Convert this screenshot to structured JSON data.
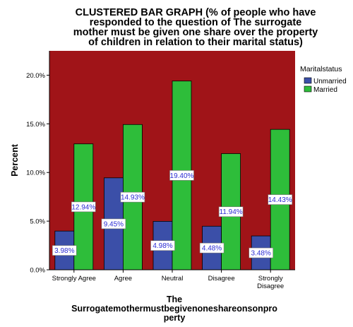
{
  "chart_data": {
    "type": "bar",
    "title_lines": [
      "CLUSTERED BAR GRAPH (% of people who have",
      "responded to the question of The surrogate",
      "mother must be given one share over the property",
      "of children in relation to their marital status)"
    ],
    "xlabel_lines": [
      "The",
      "Surrogatemothermustbegivenoneshareonsonpro",
      "perty"
    ],
    "ylabel": "Percent",
    "ylim": [
      0,
      22.5
    ],
    "yticks": [
      "0.0%",
      "5.0%",
      "10.0%",
      "15.0%",
      "20.0%"
    ],
    "ytick_values": [
      0,
      5,
      10,
      15,
      20
    ],
    "categories": [
      [
        "Strongly Agree"
      ],
      [
        "Agree"
      ],
      [
        "Neutral"
      ],
      [
        "Disagree"
      ],
      [
        "Strongly",
        "Disagree"
      ]
    ],
    "series": [
      {
        "name": "Unmarried",
        "color": "#3b4fa8",
        "values": [
          3.98,
          9.45,
          4.98,
          4.48,
          3.48
        ],
        "labels": [
          "3.98%",
          "9.45%",
          "4.98%",
          "4.48%",
          "3.48%"
        ]
      },
      {
        "name": "Married",
        "color": "#2ebd3a",
        "values": [
          12.94,
          14.93,
          19.4,
          11.94,
          14.43
        ],
        "labels": [
          "12.94%",
          "14.93%",
          "19.40%",
          "11.94%",
          "14.43%"
        ]
      }
    ],
    "legend_title": "Maritalstatus",
    "legend_position": "right",
    "plot_background": "#a01418",
    "grid": false
  }
}
